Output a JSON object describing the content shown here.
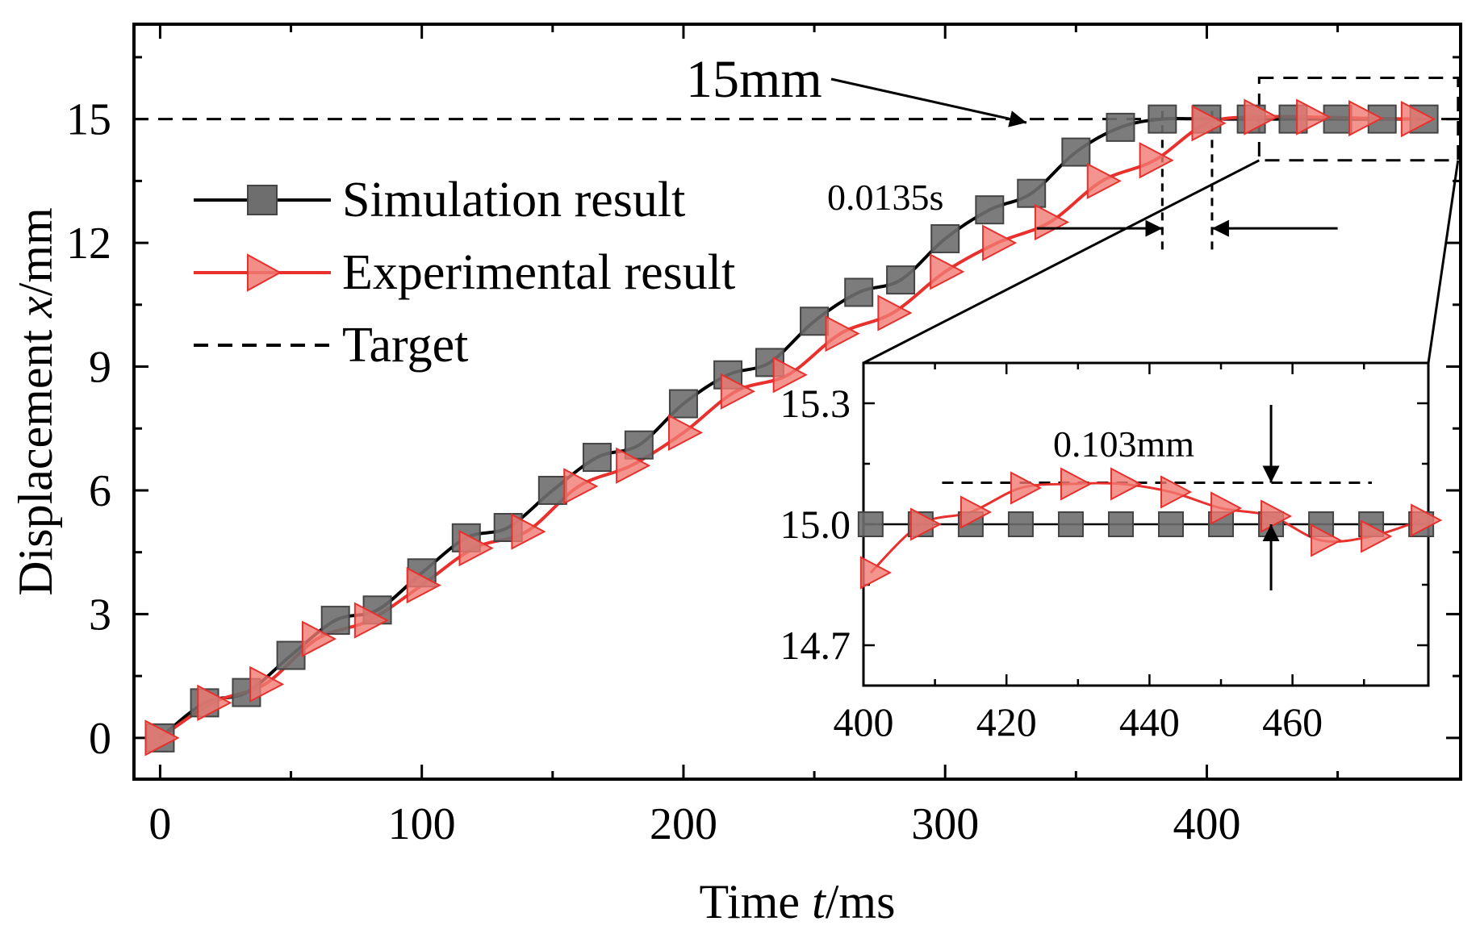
{
  "chart_data": {
    "type": "line",
    "xlabel_prefix": "Time ",
    "xlabel_var": "t",
    "xlabel_unit": "/ms",
    "ylabel_prefix": "Displacement ",
    "ylabel_var": "x",
    "ylabel_unit": "/mm",
    "xlim": [
      -10,
      497
    ],
    "ylim": [
      -1,
      17.3
    ],
    "xticks": [
      0,
      100,
      200,
      300,
      400
    ],
    "yticks": [
      0,
      3,
      6,
      9,
      12,
      15
    ],
    "legend": {
      "placement": "top-left",
      "entries": [
        "Simulation result",
        "Experimental result",
        "Target"
      ]
    },
    "target": 15,
    "series": [
      {
        "name": "Simulation result",
        "color": "#000000",
        "marker": "square",
        "marker_color": "#6e6e6e",
        "x": [
          0,
          17,
          33,
          50,
          67,
          83,
          100,
          117,
          133,
          150,
          167,
          183,
          200,
          217,
          233,
          250,
          267,
          283,
          300,
          317,
          333,
          350,
          367,
          383,
          400,
          417,
          433,
          450,
          467,
          483
        ],
        "values": [
          0,
          0.85,
          1.1,
          2.0,
          2.85,
          3.1,
          4.0,
          4.85,
          5.1,
          6.0,
          6.8,
          7.1,
          8.1,
          8.8,
          9.1,
          10.1,
          10.8,
          11.1,
          12.1,
          12.8,
          13.2,
          14.2,
          14.8,
          15.0,
          15.0,
          15.0,
          15.0,
          15.0,
          15.0,
          15.0
        ]
      },
      {
        "name": "Experimental result",
        "color": "#e8302c",
        "marker": "triangle-right",
        "marker_color": "#f07a72",
        "x": [
          0,
          20,
          40,
          60,
          80,
          100,
          120,
          140,
          160,
          180,
          200,
          220,
          240,
          260,
          280,
          300,
          320,
          340,
          360,
          380,
          400,
          420,
          440,
          460,
          480
        ],
        "values": [
          0,
          0.85,
          1.3,
          2.4,
          2.85,
          3.7,
          4.6,
          5.0,
          6.1,
          6.6,
          7.4,
          8.4,
          8.8,
          9.8,
          10.3,
          11.3,
          12.0,
          12.5,
          13.5,
          14.0,
          14.9,
          15.05,
          15.05,
          15.02,
          15.0
        ]
      }
    ],
    "annotations": {
      "target_label": "15mm",
      "settling_label": "0.0135s",
      "overshoot_label": "0.103mm"
    },
    "inset": {
      "xlim": [
        400,
        479
      ],
      "ylim": [
        14.6,
        15.4
      ],
      "xticks": [
        400,
        420,
        440,
        460
      ],
      "yticks": [
        14.7,
        15.0,
        15.3
      ],
      "ytick_labels": [
        "14.7",
        "15.0",
        "15.3"
      ],
      "overshoot_level": 15.103,
      "sim_x": [
        401,
        408,
        415,
        422,
        429,
        436,
        443,
        450,
        457,
        464,
        471,
        478
      ],
      "exp_x": [
        401,
        408,
        415,
        422,
        429,
        436,
        443,
        450,
        457,
        464,
        471,
        478
      ],
      "exp_values": [
        14.88,
        15.0,
        15.03,
        15.09,
        15.1,
        15.1,
        15.08,
        15.04,
        15.02,
        14.96,
        14.97,
        15.01
      ]
    }
  }
}
